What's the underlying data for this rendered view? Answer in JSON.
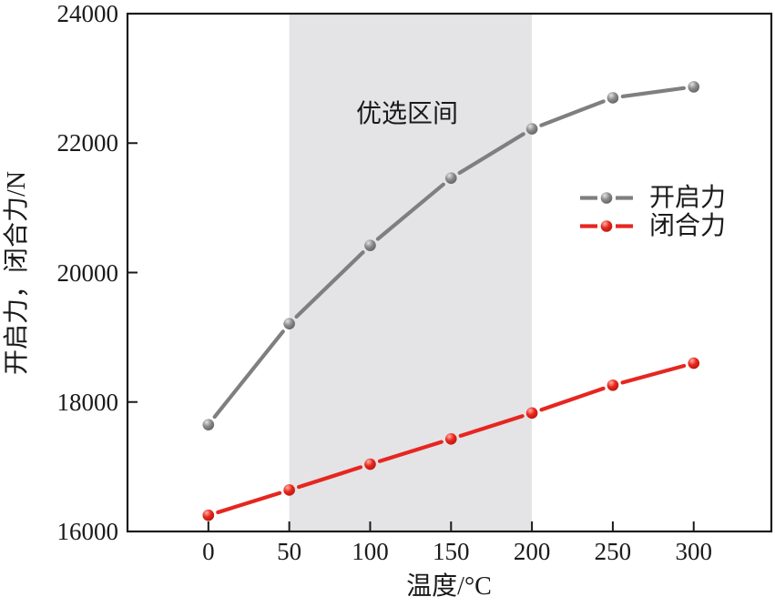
{
  "chart_data": {
    "type": "line",
    "title": "",
    "xlabel": "温度/°C",
    "ylabel": "开启力，闭合力/N",
    "x": [
      0,
      50,
      100,
      150,
      200,
      250,
      300
    ],
    "xticks": [
      0,
      50,
      100,
      150,
      200,
      250,
      300
    ],
    "yticks": [
      16000,
      18000,
      20000,
      22000,
      24000
    ],
    "xlim": [
      -50,
      348
    ],
    "ylim": [
      16000,
      24000
    ],
    "grid": false,
    "legend_position": "center-right",
    "frame_color": "#1a1a1a",
    "series": [
      {
        "name": "开启力",
        "color": "#7f7f7f",
        "marker_gradient": [
          "#e2e2e2",
          "#8b8b8b",
          "#5e5e5e"
        ],
        "values": [
          17650,
          19210,
          20420,
          21460,
          22220,
          22700,
          22870
        ]
      },
      {
        "name": "闭合力",
        "color": "#e62620",
        "marker_gradient": [
          "#ffb0a6",
          "#e8271d",
          "#b5150c"
        ],
        "values": [
          16250,
          16640,
          17040,
          17430,
          17830,
          18260,
          18600
        ]
      }
    ],
    "shaded_region": {
      "x0": 50,
      "x1": 200,
      "color": "#e4e3e5",
      "label": "优选区间"
    }
  }
}
